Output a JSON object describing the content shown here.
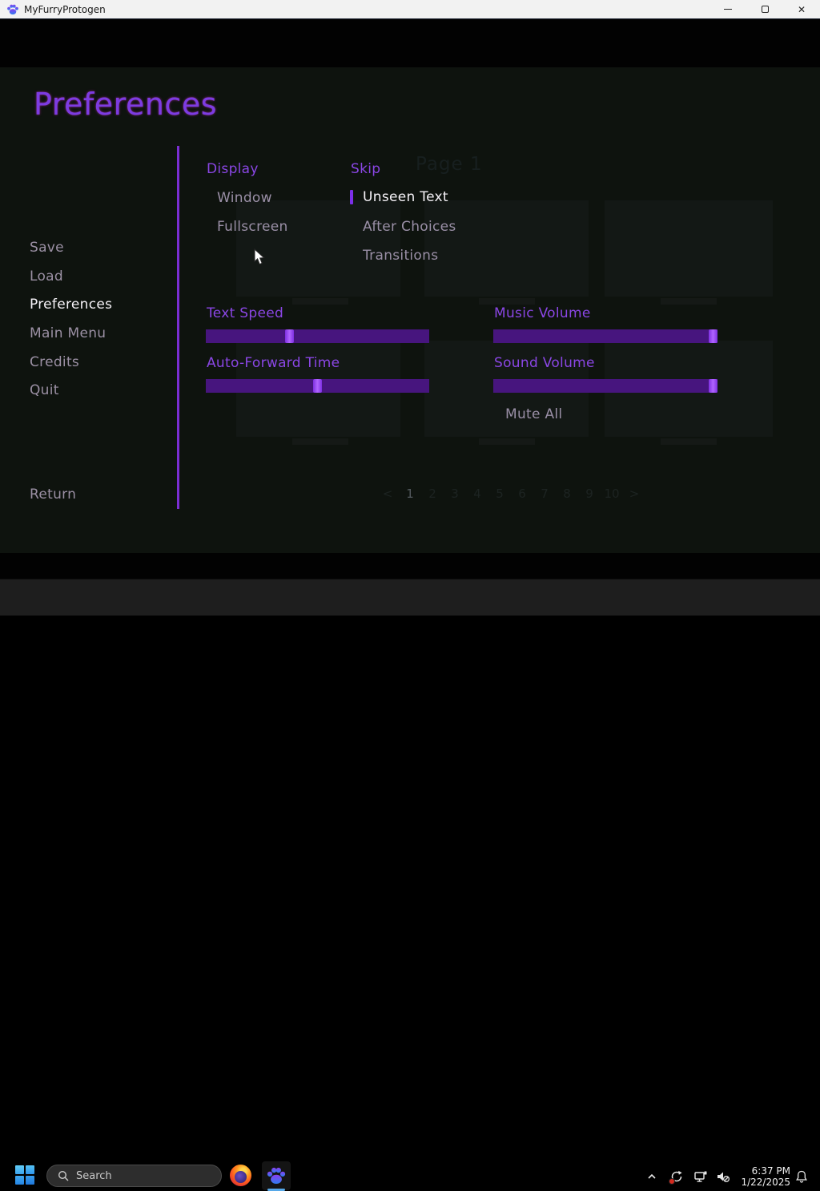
{
  "titlebar": {
    "title": "MyFurryProtogen"
  },
  "heading": "Preferences",
  "menu": {
    "items": [
      "Save",
      "Load",
      "Preferences",
      "Main Menu",
      "Credits",
      "Quit"
    ],
    "active_item": "Preferences",
    "return_label": "Return"
  },
  "sections": {
    "display": {
      "header": "Display",
      "options": [
        "Window",
        "Fullscreen"
      ]
    },
    "skip": {
      "header": "Skip",
      "options": [
        "Unseen Text",
        "After Choices",
        "Transitions"
      ],
      "selected_option": "Unseen Text"
    }
  },
  "sliders": {
    "text_speed": {
      "label": "Text Speed",
      "value_pct": 37
    },
    "auto_forward": {
      "label": "Auto-Forward Time",
      "value_pct": 50
    },
    "music": {
      "label": "Music Volume",
      "value_pct": 100
    },
    "sound": {
      "label": "Sound Volume",
      "value_pct": 100
    }
  },
  "mute_all_label": "Mute All",
  "ghost_overlay": {
    "page_title": "Page 1",
    "page_nav": [
      "<",
      "1",
      "2",
      "3",
      "4",
      "5",
      "6",
      "7",
      "8",
      "9",
      "10",
      ">"
    ],
    "current_page": "1"
  },
  "taskbar": {
    "search_placeholder": "Search",
    "clock": {
      "time": "6:37 PM",
      "date": "1/22/2025"
    }
  },
  "colors": {
    "accent_purple": "#7c3ce2",
    "slider_track": "#47157e",
    "slider_thumb": "#9d44f5",
    "menu_muted": "#9b90a4",
    "selected_text": "#f6f3f8",
    "titlebar_bg": "#f2f2f2",
    "taskbar_bg": "#1e1e1e",
    "app_indicator_blue": "#57a8e8"
  }
}
